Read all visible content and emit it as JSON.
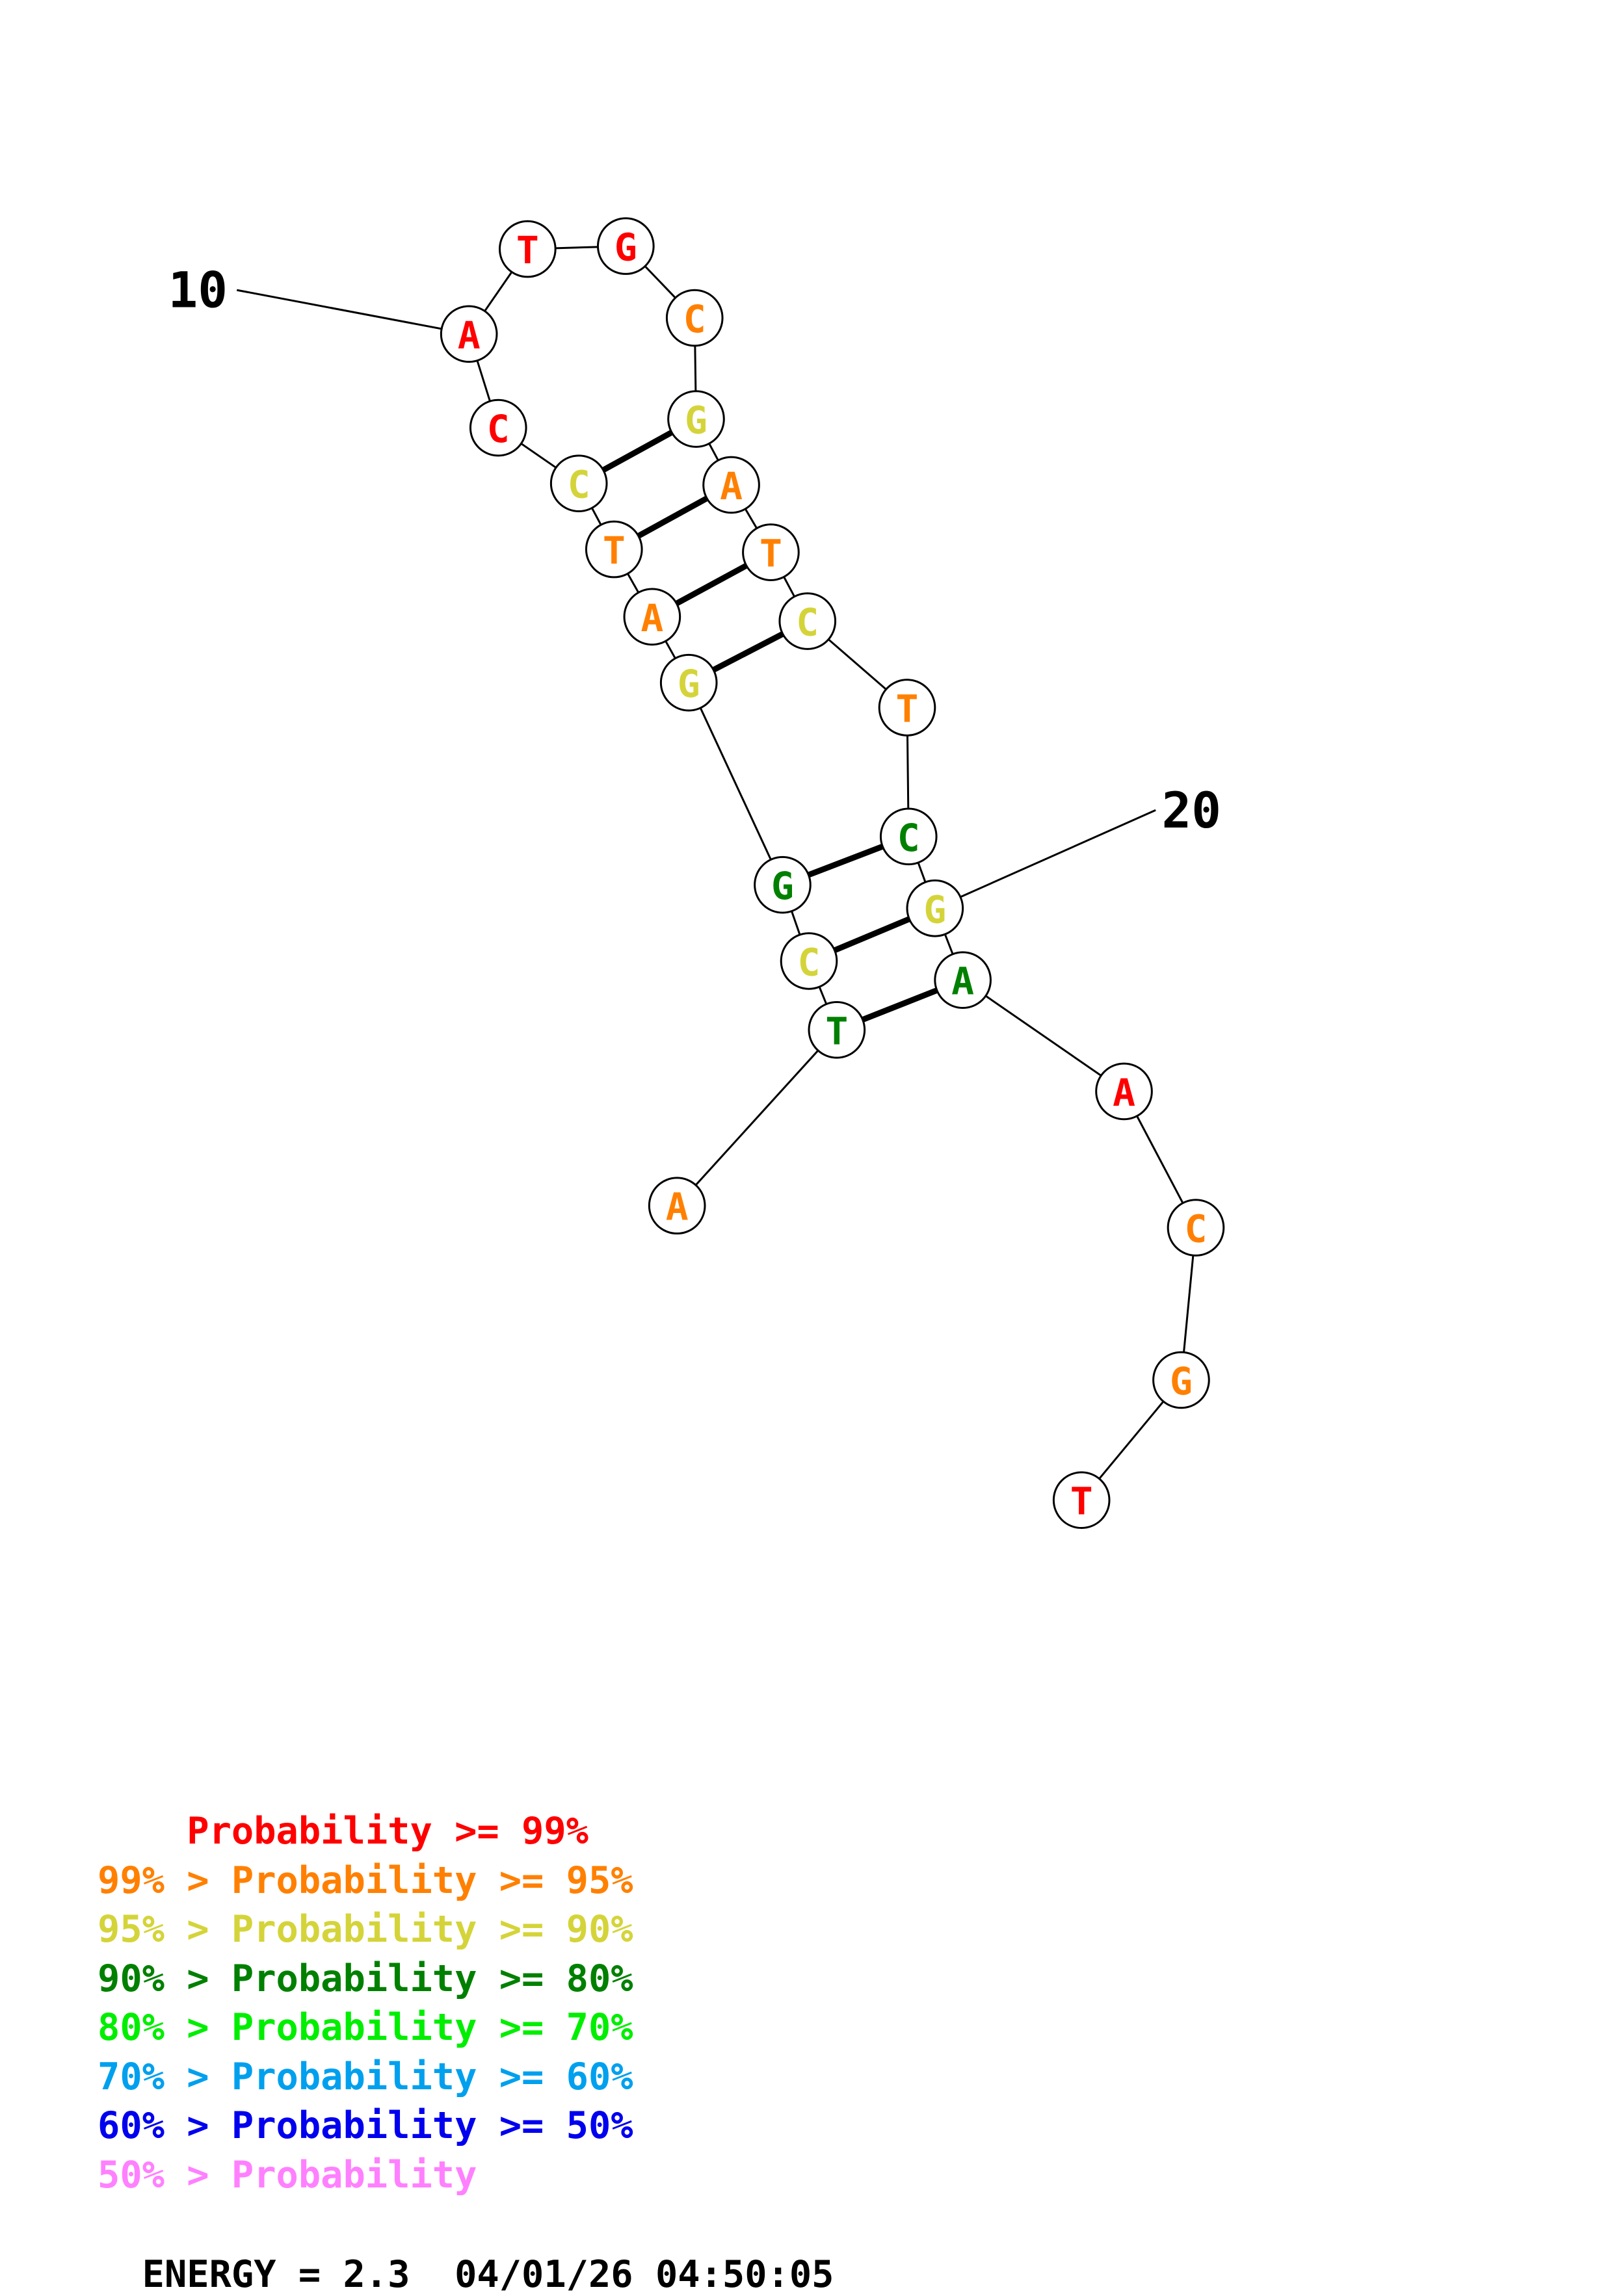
{
  "sequence": [
    {
      "base": "A",
      "color": "#ff8000"
    },
    {
      "base": "T",
      "color": "#008000"
    },
    {
      "base": "C",
      "color": "#d4d43a"
    },
    {
      "base": "G",
      "color": "#008000"
    },
    {
      "base": "G",
      "color": "#d4d43a"
    },
    {
      "base": "A",
      "color": "#ff8000"
    },
    {
      "base": "T",
      "color": "#ff8000"
    },
    {
      "base": "C",
      "color": "#d4d43a"
    },
    {
      "base": "C",
      "color": "#ff0000"
    },
    {
      "base": "A",
      "color": "#ff0000"
    },
    {
      "base": "T",
      "color": "#ff0000"
    },
    {
      "base": "G",
      "color": "#ff0000"
    },
    {
      "base": "C",
      "color": "#ff8000"
    },
    {
      "base": "G",
      "color": "#d4d43a"
    },
    {
      "base": "A",
      "color": "#ff8000"
    },
    {
      "base": "T",
      "color": "#ff8000"
    },
    {
      "base": "C",
      "color": "#d4d43a"
    },
    {
      "base": "T",
      "color": "#ff8000"
    },
    {
      "base": "C",
      "color": "#008000"
    },
    {
      "base": "G",
      "color": "#d4d43a"
    },
    {
      "base": "A",
      "color": "#008000"
    },
    {
      "base": "A",
      "color": "#ff0000"
    },
    {
      "base": "C",
      "color": "#ff8000"
    },
    {
      "base": "G",
      "color": "#ff8000"
    },
    {
      "base": "T",
      "color": "#ff0000"
    }
  ],
  "pairs": [
    [
      2,
      21
    ],
    [
      3,
      20
    ],
    [
      4,
      19
    ],
    [
      5,
      17
    ],
    [
      6,
      16
    ],
    [
      7,
      15
    ],
    [
      8,
      14
    ]
  ],
  "position_labels": [
    {
      "nt": 10,
      "text": "10"
    },
    {
      "nt": 20,
      "text": "20"
    }
  ],
  "legend": [
    {
      "prefix": "    ",
      "text": "Probability >= 99%",
      "color": "#ff0000"
    },
    {
      "prefix": "99% > ",
      "text": "Probability >= 95%",
      "color": "#ff8000"
    },
    {
      "prefix": "95% > ",
      "text": "Probability >= 90%",
      "color": "#d4d43a"
    },
    {
      "prefix": "90% > ",
      "text": "Probability >= 80%",
      "color": "#008000"
    },
    {
      "prefix": "80% > ",
      "text": "Probability >= 70%",
      "color": "#00ee00"
    },
    {
      "prefix": "70% > ",
      "text": "Probability >= 60%",
      "color": "#00a0ee"
    },
    {
      "prefix": "60% > ",
      "text": "Probability >= 50%",
      "color": "#0000ee"
    },
    {
      "prefix": "50% > ",
      "text": "Probability",
      "color": "#ff80ff"
    }
  ],
  "energy": {
    "label": "ENERGY = 2.3",
    "timestamp": "04/01/26 04:50:05"
  }
}
